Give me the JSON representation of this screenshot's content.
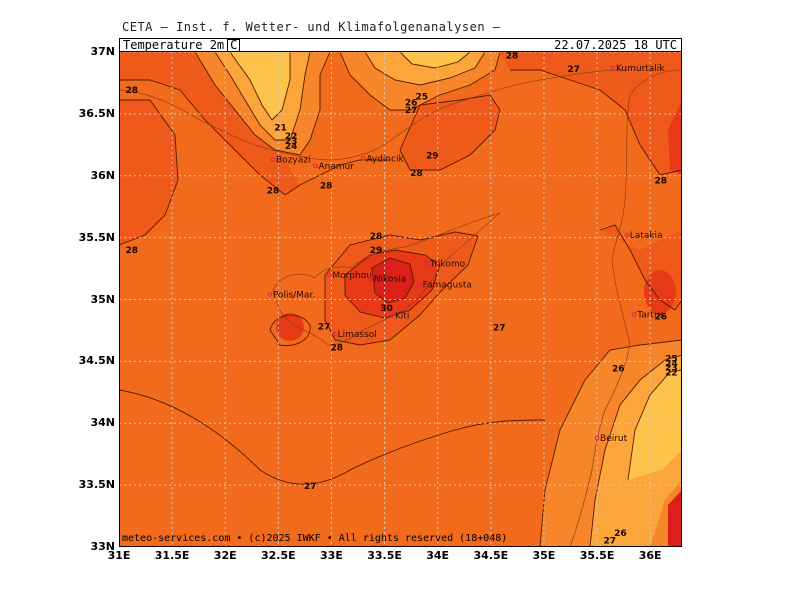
{
  "header": {
    "title": "CETA – Inst. f. Wetter- und Klimafolgenanalysen –"
  },
  "field": {
    "label": "Temperature_2m",
    "unit": "C"
  },
  "valid_time": "22.07.2025 18 UTC",
  "copyright": "meteo-services.com • (c)2025 IWKF • All rights reserved (18+048)",
  "axes": {
    "lat_labels": [
      "37N",
      "36.5N",
      "36N",
      "35.5N",
      "35N",
      "34.5N",
      "34N",
      "33.5N",
      "33N"
    ],
    "lon_labels": [
      "31E",
      "31.5E",
      "32E",
      "32.5E",
      "33E",
      "33.5E",
      "34E",
      "34.5E",
      "35E",
      "35.5E",
      "36E"
    ]
  },
  "colors": {
    "base": "#F26B1C",
    "warm1": "#EF5A1A",
    "warm2": "#E83A17",
    "hot": "#DD1F1A",
    "cool1": "#F7852A",
    "cool2": "#FBA53A",
    "cool3": "#FDC34A",
    "grid": "#CCCCCC"
  },
  "places": [
    {
      "name": "Kumurtalik",
      "lon": 35.65,
      "lat": 36.87
    },
    {
      "name": "Bozyazi",
      "lon": 32.45,
      "lat": 36.13
    },
    {
      "name": "Anamur",
      "lon": 32.85,
      "lat": 36.08
    },
    {
      "name": "Aydincik",
      "lon": 33.3,
      "lat": 36.14
    },
    {
      "name": "Latakia",
      "lon": 35.78,
      "lat": 35.52
    },
    {
      "name": "Morphou",
      "lon": 32.98,
      "lat": 35.2
    },
    {
      "name": "Nikosia",
      "lon": 33.37,
      "lat": 35.17
    },
    {
      "name": "Famagusta",
      "lon": 33.83,
      "lat": 35.12
    },
    {
      "name": "Trikomo",
      "lon": 33.9,
      "lat": 35.29
    },
    {
      "name": "Polis/Mar.",
      "lon": 32.42,
      "lat": 35.04
    },
    {
      "name": "Kiti",
      "lon": 33.57,
      "lat": 34.87
    },
    {
      "name": "Limassol",
      "lon": 33.03,
      "lat": 34.72
    },
    {
      "name": "Tartus",
      "lon": 35.85,
      "lat": 34.88
    },
    {
      "name": "Beirut",
      "lon": 35.5,
      "lat": 33.88
    }
  ],
  "contour_labels": [
    {
      "text": "28",
      "lon": 34.7,
      "lat": 36.98
    },
    {
      "text": "27",
      "lon": 35.28,
      "lat": 36.87
    },
    {
      "text": "28",
      "lon": 31.12,
      "lat": 36.7
    },
    {
      "text": "25",
      "lon": 33.85,
      "lat": 36.65
    },
    {
      "text": "26",
      "lon": 33.75,
      "lat": 36.6
    },
    {
      "text": "27",
      "lon": 33.75,
      "lat": 36.54
    },
    {
      "text": "21",
      "lon": 32.52,
      "lat": 36.4
    },
    {
      "text": "22",
      "lon": 32.62,
      "lat": 36.33
    },
    {
      "text": "23",
      "lon": 32.62,
      "lat": 36.29
    },
    {
      "text": "24",
      "lon": 32.62,
      "lat": 36.25
    },
    {
      "text": "29",
      "lon": 33.95,
      "lat": 36.17
    },
    {
      "text": "28",
      "lon": 33.8,
      "lat": 36.03
    },
    {
      "text": "28",
      "lon": 32.45,
      "lat": 35.89
    },
    {
      "text": "28",
      "lon": 32.95,
      "lat": 35.93
    },
    {
      "text": "28",
      "lon": 36.1,
      "lat": 35.97
    },
    {
      "text": "28",
      "lon": 33.42,
      "lat": 35.52
    },
    {
      "text": "29",
      "lon": 33.42,
      "lat": 35.41
    },
    {
      "text": "28",
      "lon": 31.12,
      "lat": 35.41
    },
    {
      "text": "30",
      "lon": 33.52,
      "lat": 34.94
    },
    {
      "text": "27",
      "lon": 34.58,
      "lat": 34.78
    },
    {
      "text": "27",
      "lon": 32.93,
      "lat": 34.79
    },
    {
      "text": "28",
      "lon": 33.05,
      "lat": 34.62
    },
    {
      "text": "26",
      "lon": 36.1,
      "lat": 34.87
    },
    {
      "text": "26",
      "lon": 35.7,
      "lat": 34.45
    },
    {
      "text": "25",
      "lon": 36.2,
      "lat": 34.53
    },
    {
      "text": "24",
      "lon": 36.2,
      "lat": 34.49
    },
    {
      "text": "23",
      "lon": 36.2,
      "lat": 34.46
    },
    {
      "text": "22",
      "lon": 36.2,
      "lat": 34.42
    },
    {
      "text": "27",
      "lon": 32.8,
      "lat": 33.5
    },
    {
      "text": "26",
      "lon": 35.72,
      "lat": 33.12
    },
    {
      "text": "27",
      "lon": 35.62,
      "lat": 33.06
    }
  ]
}
